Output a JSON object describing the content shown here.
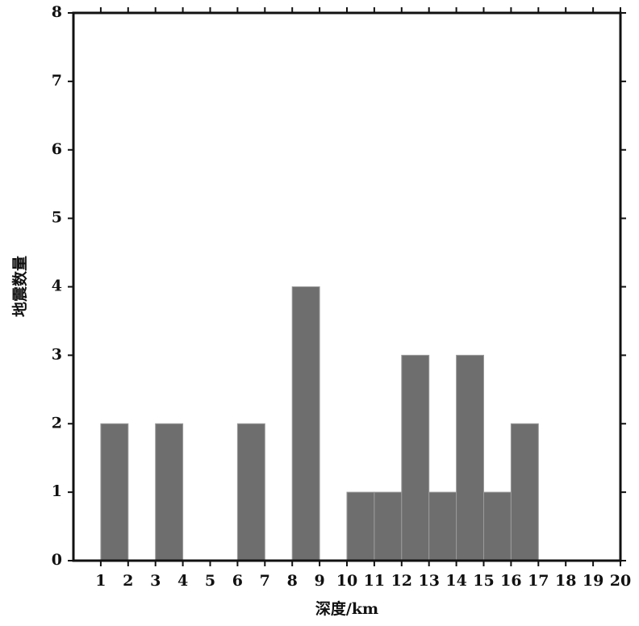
{
  "chart_data": {
    "type": "histogram",
    "x_label": "深度/km",
    "y_label": "地震数量",
    "bins": [
      0,
      1,
      2,
      3,
      4,
      5,
      6,
      7,
      8,
      9,
      10,
      11,
      12,
      13,
      14,
      15,
      16,
      17,
      18,
      19,
      20
    ],
    "values": [
      0,
      2,
      0,
      2,
      0,
      0,
      2,
      0,
      4,
      0,
      1,
      1,
      3,
      1,
      3,
      1,
      2,
      0,
      0,
      0
    ],
    "color": "#6e6e6e",
    "xlim": [
      0,
      20
    ],
    "xticks": [
      1,
      2,
      3,
      4,
      5,
      6,
      7,
      8,
      9,
      10,
      11,
      12,
      13,
      14,
      15,
      16,
      17,
      18,
      19,
      20
    ],
    "ylim": [
      0,
      8
    ],
    "yticks": [
      0,
      1,
      2,
      3,
      4,
      5,
      6,
      7,
      8
    ],
    "grid": false
  }
}
